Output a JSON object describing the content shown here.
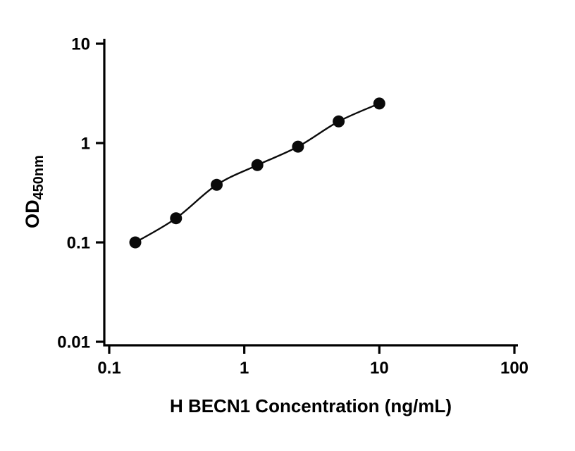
{
  "chart_data": {
    "type": "scatter",
    "title": "",
    "xlabel": "H BECN1 Concentration (ng/mL)",
    "ylabel": "OD",
    "ylabel_subscript": "450nm",
    "x_scale": "log",
    "y_scale": "log",
    "xlim": [
      0.1,
      100
    ],
    "ylim": [
      0.01,
      10
    ],
    "x_ticks": [
      0.1,
      1,
      10,
      100
    ],
    "x_tick_labels": [
      "0.1",
      "1",
      "10",
      "100"
    ],
    "y_ticks": [
      0.01,
      0.1,
      1,
      10
    ],
    "y_tick_labels": [
      "0.01",
      "0.1",
      "1",
      "10"
    ],
    "x": [
      0.156,
      0.3125,
      0.625,
      1.25,
      2.5,
      5,
      10
    ],
    "y": [
      0.1,
      0.175,
      0.38,
      0.6,
      0.92,
      1.65,
      2.5
    ],
    "fit_line": true,
    "legend": "none",
    "grid": false,
    "marker_color": "#0a0a0a",
    "line_color": "#0a0a0a",
    "axis_color": "#000000"
  }
}
